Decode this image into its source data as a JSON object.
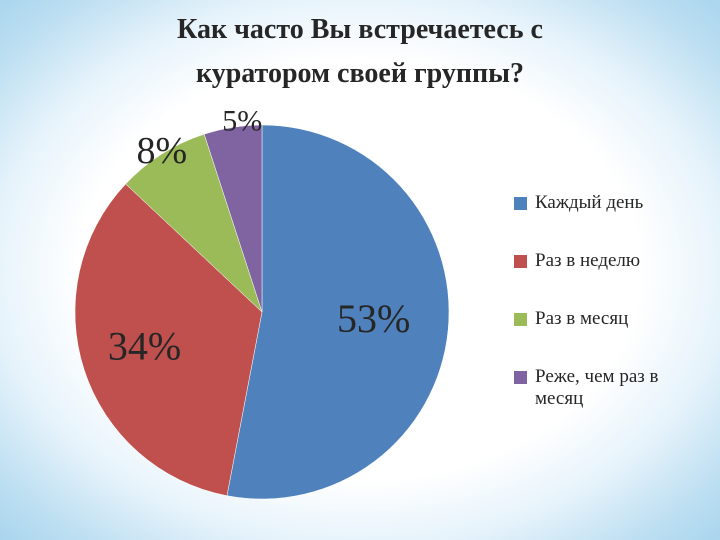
{
  "title_lines": [
    "Как часто Вы встречаетесь с",
    "куратором своей группы?"
  ],
  "chart_data": {
    "type": "pie",
    "title": "Как часто Вы встречаетесь с куратором своей группы?",
    "series": [
      {
        "name": "Каждый день",
        "value": 53,
        "label": "53%",
        "color": "#4f81bd"
      },
      {
        "name": "Раз в неделю",
        "value": 34,
        "label": "34%",
        "color": "#c0504d"
      },
      {
        "name": "Раз в месяц",
        "value": 8,
        "label": "8%",
        "color": "#9bbb59"
      },
      {
        "name": "Реже, чем раз в месяц",
        "value": 5,
        "label": "5%",
        "color": "#8064a2"
      }
    ],
    "legend_position": "right",
    "start_angle": "top, clockwise"
  }
}
